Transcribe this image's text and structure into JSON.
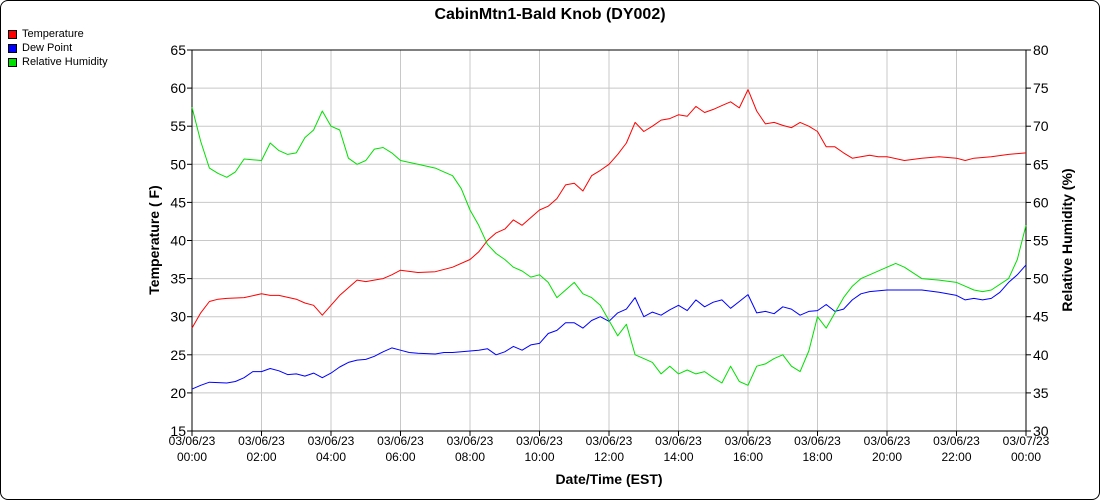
{
  "chart_data": {
    "type": "line",
    "title": "CabinMtn1-Bald Knob (DY002)",
    "xlabel": "Date/Time (EST)",
    "ylabel_left": "Temperature ( F)",
    "ylabel_right": "Relative Humidity (%)",
    "ylim_left": [
      15,
      65
    ],
    "ylim_right": [
      30,
      80
    ],
    "yticks_left": [
      "15",
      "20",
      "25",
      "30",
      "35",
      "40",
      "45",
      "50",
      "55",
      "60",
      "65"
    ],
    "yticks_right": [
      "30",
      "35",
      "40",
      "45",
      "50",
      "55",
      "60",
      "65",
      "70",
      "75",
      "80"
    ],
    "xlim_hours": [
      0,
      24
    ],
    "x_ticks": [
      {
        "date": "03/06/23",
        "time": "00:00"
      },
      {
        "date": "03/06/23",
        "time": "02:00"
      },
      {
        "date": "03/06/23",
        "time": "04:00"
      },
      {
        "date": "03/06/23",
        "time": "06:00"
      },
      {
        "date": "03/06/23",
        "time": "08:00"
      },
      {
        "date": "03/06/23",
        "time": "10:00"
      },
      {
        "date": "03/06/23",
        "time": "12:00"
      },
      {
        "date": "03/06/23",
        "time": "14:00"
      },
      {
        "date": "03/06/23",
        "time": "16:00"
      },
      {
        "date": "03/06/23",
        "time": "18:00"
      },
      {
        "date": "03/06/23",
        "time": "20:00"
      },
      {
        "date": "03/06/23",
        "time": "22:00"
      },
      {
        "date": "03/07/23",
        "time": "00:00"
      }
    ],
    "grid": true,
    "legend_position": "top-left",
    "series": [
      {
        "name": "Temperature",
        "color": "#ff0000",
        "axis": "left",
        "points": [
          [
            0,
            28.5
          ],
          [
            0.25,
            30.5
          ],
          [
            0.5,
            32.0
          ],
          [
            0.75,
            32.3
          ],
          [
            1,
            32.4
          ],
          [
            1.5,
            32.5
          ],
          [
            2,
            33.0
          ],
          [
            2.25,
            32.8
          ],
          [
            2.5,
            32.8
          ],
          [
            3,
            32.3
          ],
          [
            3.25,
            31.8
          ],
          [
            3.5,
            31.5
          ],
          [
            3.75,
            30.2
          ],
          [
            4,
            31.5
          ],
          [
            4.25,
            32.8
          ],
          [
            4.5,
            33.8
          ],
          [
            4.75,
            34.8
          ],
          [
            5,
            34.6
          ],
          [
            5.5,
            35.0
          ],
          [
            5.75,
            35.5
          ],
          [
            6,
            36.1
          ],
          [
            6.5,
            35.8
          ],
          [
            7,
            35.9
          ],
          [
            7.5,
            36.5
          ],
          [
            8,
            37.5
          ],
          [
            8.25,
            38.5
          ],
          [
            8.5,
            40.0
          ],
          [
            8.75,
            41.0
          ],
          [
            9,
            41.5
          ],
          [
            9.25,
            42.7
          ],
          [
            9.5,
            42.0
          ],
          [
            9.75,
            43.0
          ],
          [
            10,
            44.0
          ],
          [
            10.25,
            44.5
          ],
          [
            10.5,
            45.5
          ],
          [
            10.75,
            47.3
          ],
          [
            11,
            47.5
          ],
          [
            11.25,
            46.5
          ],
          [
            11.5,
            48.5
          ],
          [
            11.75,
            49.2
          ],
          [
            12,
            50.0
          ],
          [
            12.25,
            51.3
          ],
          [
            12.5,
            52.8
          ],
          [
            12.75,
            55.5
          ],
          [
            13,
            54.3
          ],
          [
            13.25,
            55.0
          ],
          [
            13.5,
            55.8
          ],
          [
            13.75,
            56.0
          ],
          [
            14,
            56.5
          ],
          [
            14.25,
            56.3
          ],
          [
            14.5,
            57.6
          ],
          [
            14.75,
            56.8
          ],
          [
            15,
            57.2
          ],
          [
            15.25,
            57.7
          ],
          [
            15.5,
            58.2
          ],
          [
            15.75,
            57.4
          ],
          [
            16,
            59.8
          ],
          [
            16.25,
            57.0
          ],
          [
            16.5,
            55.3
          ],
          [
            16.75,
            55.5
          ],
          [
            17,
            55.1
          ],
          [
            17.25,
            54.8
          ],
          [
            17.5,
            55.5
          ],
          [
            17.75,
            55.0
          ],
          [
            18,
            54.3
          ],
          [
            18.25,
            52.3
          ],
          [
            18.5,
            52.3
          ],
          [
            18.75,
            51.5
          ],
          [
            19,
            50.8
          ],
          [
            19.25,
            51.0
          ],
          [
            19.5,
            51.2
          ],
          [
            19.75,
            51.0
          ],
          [
            20,
            51.0
          ],
          [
            20.5,
            50.5
          ],
          [
            21,
            50.8
          ],
          [
            21.5,
            51.0
          ],
          [
            22,
            50.8
          ],
          [
            22.25,
            50.5
          ],
          [
            22.5,
            50.8
          ],
          [
            23,
            51.0
          ],
          [
            23.5,
            51.3
          ],
          [
            24,
            51.5
          ]
        ]
      },
      {
        "name": "Dew Point",
        "color": "#0000ff",
        "axis": "left",
        "points": [
          [
            0,
            20.5
          ],
          [
            0.25,
            21.0
          ],
          [
            0.5,
            21.4
          ],
          [
            1,
            21.3
          ],
          [
            1.25,
            21.5
          ],
          [
            1.5,
            22.0
          ],
          [
            1.75,
            22.8
          ],
          [
            2,
            22.8
          ],
          [
            2.25,
            23.2
          ],
          [
            2.5,
            22.9
          ],
          [
            2.75,
            22.4
          ],
          [
            3,
            22.5
          ],
          [
            3.25,
            22.2
          ],
          [
            3.5,
            22.6
          ],
          [
            3.75,
            22.0
          ],
          [
            4,
            22.6
          ],
          [
            4.25,
            23.4
          ],
          [
            4.5,
            24.0
          ],
          [
            4.75,
            24.3
          ],
          [
            5,
            24.4
          ],
          [
            5.25,
            24.8
          ],
          [
            5.5,
            25.4
          ],
          [
            5.75,
            25.9
          ],
          [
            6,
            25.6
          ],
          [
            6.25,
            25.3
          ],
          [
            6.5,
            25.2
          ],
          [
            7,
            25.1
          ],
          [
            7.25,
            25.3
          ],
          [
            7.5,
            25.3
          ],
          [
            8,
            25.5
          ],
          [
            8.25,
            25.6
          ],
          [
            8.5,
            25.8
          ],
          [
            8.75,
            25.0
          ],
          [
            9,
            25.4
          ],
          [
            9.25,
            26.1
          ],
          [
            9.5,
            25.6
          ],
          [
            9.75,
            26.3
          ],
          [
            10,
            26.5
          ],
          [
            10.25,
            27.8
          ],
          [
            10.5,
            28.2
          ],
          [
            10.75,
            29.2
          ],
          [
            11,
            29.2
          ],
          [
            11.25,
            28.5
          ],
          [
            11.5,
            29.5
          ],
          [
            11.75,
            30.0
          ],
          [
            12,
            29.4
          ],
          [
            12.25,
            30.5
          ],
          [
            12.5,
            31.0
          ],
          [
            12.75,
            32.5
          ],
          [
            13,
            30.0
          ],
          [
            13.25,
            30.6
          ],
          [
            13.5,
            30.2
          ],
          [
            13.75,
            30.9
          ],
          [
            14,
            31.5
          ],
          [
            14.25,
            30.8
          ],
          [
            14.5,
            32.2
          ],
          [
            14.75,
            31.3
          ],
          [
            15,
            31.9
          ],
          [
            15.25,
            32.2
          ],
          [
            15.5,
            31.1
          ],
          [
            15.75,
            32.0
          ],
          [
            16,
            32.9
          ],
          [
            16.25,
            30.5
          ],
          [
            16.5,
            30.7
          ],
          [
            16.75,
            30.4
          ],
          [
            17,
            31.3
          ],
          [
            17.25,
            31.0
          ],
          [
            17.5,
            30.2
          ],
          [
            17.75,
            30.7
          ],
          [
            18,
            30.8
          ],
          [
            18.25,
            31.6
          ],
          [
            18.5,
            30.7
          ],
          [
            18.75,
            31.0
          ],
          [
            19,
            32.2
          ],
          [
            19.25,
            33.0
          ],
          [
            19.5,
            33.3
          ],
          [
            20,
            33.5
          ],
          [
            20.5,
            33.5
          ],
          [
            21,
            33.5
          ],
          [
            21.5,
            33.2
          ],
          [
            22,
            32.8
          ],
          [
            22.25,
            32.2
          ],
          [
            22.5,
            32.4
          ],
          [
            22.75,
            32.2
          ],
          [
            23,
            32.4
          ],
          [
            23.25,
            33.2
          ],
          [
            23.5,
            34.5
          ],
          [
            23.75,
            35.5
          ],
          [
            24,
            36.8
          ]
        ]
      },
      {
        "name": "Relative Humidity",
        "color": "#00e000",
        "axis": "right",
        "points": [
          [
            0,
            72.5
          ],
          [
            0.25,
            68.0
          ],
          [
            0.5,
            64.5
          ],
          [
            0.75,
            63.8
          ],
          [
            1,
            63.3
          ],
          [
            1.25,
            64.0
          ],
          [
            1.5,
            65.7
          ],
          [
            2,
            65.5
          ],
          [
            2.25,
            67.8
          ],
          [
            2.5,
            66.8
          ],
          [
            2.75,
            66.3
          ],
          [
            3,
            66.5
          ],
          [
            3.25,
            68.5
          ],
          [
            3.5,
            69.5
          ],
          [
            3.75,
            72.0
          ],
          [
            4,
            70.0
          ],
          [
            4.25,
            69.5
          ],
          [
            4.5,
            65.8
          ],
          [
            4.75,
            65.0
          ],
          [
            5,
            65.5
          ],
          [
            5.25,
            67.0
          ],
          [
            5.5,
            67.2
          ],
          [
            5.75,
            66.5
          ],
          [
            6,
            65.5
          ],
          [
            6.5,
            65.0
          ],
          [
            7,
            64.5
          ],
          [
            7.25,
            64.0
          ],
          [
            7.5,
            63.5
          ],
          [
            7.75,
            61.8
          ],
          [
            8,
            59.0
          ],
          [
            8.25,
            57.0
          ],
          [
            8.5,
            54.5
          ],
          [
            8.75,
            53.3
          ],
          [
            9,
            52.5
          ],
          [
            9.25,
            51.5
          ],
          [
            9.5,
            51.0
          ],
          [
            9.75,
            50.2
          ],
          [
            10,
            50.5
          ],
          [
            10.25,
            49.5
          ],
          [
            10.5,
            47.5
          ],
          [
            10.75,
            48.5
          ],
          [
            11,
            49.5
          ],
          [
            11.25,
            48.0
          ],
          [
            11.5,
            47.5
          ],
          [
            11.75,
            46.5
          ],
          [
            12,
            44.5
          ],
          [
            12.25,
            42.5
          ],
          [
            12.5,
            44.0
          ],
          [
            12.75,
            40.0
          ],
          [
            13,
            39.5
          ],
          [
            13.25,
            39.0
          ],
          [
            13.5,
            37.5
          ],
          [
            13.75,
            38.5
          ],
          [
            14,
            37.5
          ],
          [
            14.25,
            38.0
          ],
          [
            14.5,
            37.5
          ],
          [
            14.75,
            37.8
          ],
          [
            15,
            37.0
          ],
          [
            15.25,
            36.3
          ],
          [
            15.5,
            38.5
          ],
          [
            15.75,
            36.5
          ],
          [
            16,
            36.0
          ],
          [
            16.25,
            38.5
          ],
          [
            16.5,
            38.8
          ],
          [
            16.75,
            39.5
          ],
          [
            17,
            40.0
          ],
          [
            17.25,
            38.5
          ],
          [
            17.5,
            37.8
          ],
          [
            17.75,
            40.5
          ],
          [
            18,
            45.0
          ],
          [
            18.25,
            43.5
          ],
          [
            18.5,
            45.5
          ],
          [
            18.75,
            47.5
          ],
          [
            19,
            49.0
          ],
          [
            19.25,
            50.0
          ],
          [
            19.5,
            50.5
          ],
          [
            20,
            51.5
          ],
          [
            20.25,
            52.0
          ],
          [
            20.5,
            51.5
          ],
          [
            21,
            50.0
          ],
          [
            21.5,
            49.8
          ],
          [
            22,
            49.5
          ],
          [
            22.25,
            49.0
          ],
          [
            22.5,
            48.5
          ],
          [
            22.75,
            48.3
          ],
          [
            23,
            48.5
          ],
          [
            23.5,
            50.0
          ],
          [
            23.75,
            52.5
          ],
          [
            24,
            57.0
          ]
        ]
      }
    ]
  }
}
